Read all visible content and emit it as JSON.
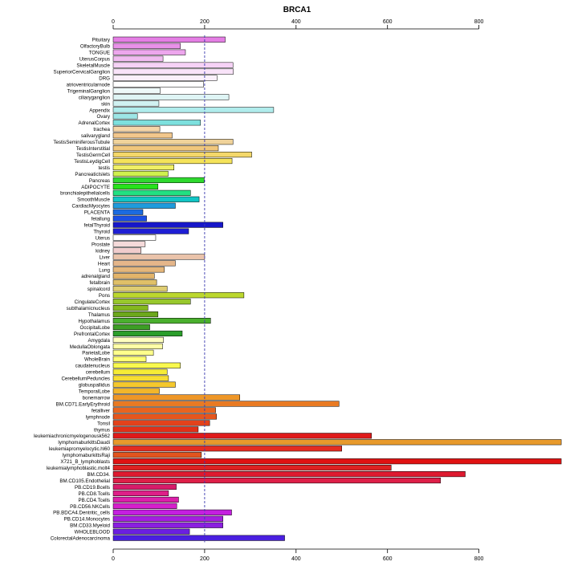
{
  "chart_data": {
    "type": "bar",
    "orientation": "horizontal",
    "title": "BRCA1",
    "xlabel": "",
    "ylabel": "",
    "xlim": [
      0,
      980
    ],
    "xticks": [
      0,
      200,
      400,
      600,
      800
    ],
    "reference_line": 200,
    "axes": "top and bottom",
    "categories": [
      "Pituitary",
      "OlfactoryBulb",
      "TONGUE",
      "UterusCorpus",
      "SkeletalMuscle",
      "SuperiorCervicalGanglion",
      "DRG",
      "atrioventricularnode",
      "TrigeminalGanglion",
      "ciliaryganglion",
      "skin",
      "Appendix",
      "Ovary",
      "AdrenalCortex",
      "trachea",
      "salivarygland",
      "TestisSeminiferousTubule",
      "TestisInterstitial",
      "TestisGermCell",
      "TestisLeydigCell",
      "testis",
      "PancreaticIslets",
      "Pancreas",
      "ADIPOCYTE",
      "bronchialepithelialcells",
      "SmoothMuscle",
      "CardiacMyocytes",
      "PLACENTA",
      "fetallung",
      "fetalThyroid",
      "Thyroid",
      "Uterus",
      "Prostate",
      "kidney",
      "Liver",
      "Heart",
      "Lung",
      "adrenalgland",
      "fetalbrain",
      "spinalcord",
      "Pons",
      "CingulateCortex",
      "subthalamicnucleus",
      "Thalamus",
      "Hypothalamus",
      "OccipitalLobe",
      "PrefrontalCortex",
      "Amygdala",
      "MedullaOblongata",
      "ParietalLobe",
      "WholeBrain",
      "caudatenucleus",
      "cerebellum",
      "CerebellumPeduncles",
      "globuspallidus",
      "TemporalLobe",
      "bonemarrow",
      "BM.CD71.EarlyErythroid",
      "fetalliver",
      "lymphnode",
      "Tonsil",
      "thymus",
      "leukemiachronicmyelogenousk562",
      "lymphomaburkittsDaudi",
      "leukemiapromyelocytic.hl60",
      "lymphomaburkittsRaji",
      "X721_B_lymphoblasts",
      "leukemialymphoblastic.molt4",
      "BM.CD34.",
      "BM.CD105.Endothelial",
      "PB.CD19.Bcells",
      "PB.CD8.Tcells",
      "PB.CD4.Tcells",
      "PB.CD56.NKCells",
      "PB.BDCA4.Dentritic_cells",
      "PB.CD14.Monocytes",
      "BM.CD33.Myeloid",
      "WHOLEBLOOD",
      "ColorectalAdenocarcinoma"
    ],
    "values": [
      245,
      147,
      158,
      109,
      262,
      263,
      227,
      198,
      103,
      253,
      100,
      351,
      53,
      191,
      102,
      129,
      262,
      230,
      303,
      260,
      133,
      120,
      199,
      98,
      169,
      188,
      136,
      65,
      73,
      240,
      165,
      93,
      70,
      61,
      200,
      136,
      112,
      90,
      95,
      118,
      286,
      169,
      76,
      98,
      213,
      80,
      151,
      110,
      108,
      88,
      72,
      147,
      118,
      121,
      136,
      101,
      277,
      494,
      224,
      226,
      211,
      186,
      565,
      980,
      500,
      193,
      980,
      608,
      770,
      716,
      138,
      121,
      143,
      139,
      259,
      240,
      240,
      167,
      375
    ],
    "colors": [
      "#e47ee4",
      "#e891e8",
      "#eda6ed",
      "#f1bcf1",
      "#f6d2f6",
      "#f9e3f9",
      "#fbf0fb",
      "#ffffff",
      "#eef9f9",
      "#dff5f5",
      "#d0f1f1",
      "#b0ecec",
      "#9de6e6",
      "#7de0de",
      "#f5d6a8",
      "#f2c78c",
      "#f0d39a",
      "#f0c77c",
      "#f4d86a",
      "#f5e35a",
      "#f0f066",
      "#cff04e",
      "#2fd92f",
      "#27e21b",
      "#22e082",
      "#11c5c5",
      "#1f9bdc",
      "#1c6be0",
      "#1b4fe5",
      "#1717c9",
      "#1e1ed4",
      "#ffffff",
      "#f5dada",
      "#f0cccc",
      "#eac3aa",
      "#e5b68a",
      "#e5b67a",
      "#e3b46a",
      "#e0c068",
      "#dfcd72",
      "#bcd82e",
      "#98c82c",
      "#84b81f",
      "#6ca81c",
      "#4ab02e",
      "#3d9e25",
      "#2b9e2b",
      "#ffffc0",
      "#ffffa6",
      "#ffff8c",
      "#ffff72",
      "#f9f94e",
      "#f6ec36",
      "#f6dd32",
      "#f5c82d",
      "#f2b62a",
      "#ee9626",
      "#e97a23",
      "#e8641f",
      "#e6561d",
      "#e3421b",
      "#e13018",
      "#de1a1a",
      "#e89a2c",
      "#e32c22",
      "#e2541e",
      "#e01212",
      "#de2222",
      "#de1a30",
      "#de1f48",
      "#d81c6a",
      "#de1f88",
      "#dc1faa",
      "#d61fcc",
      "#c51fe0",
      "#a41fe0",
      "#8b1fe0",
      "#6b1fe0",
      "#4a1fe0"
    ]
  }
}
